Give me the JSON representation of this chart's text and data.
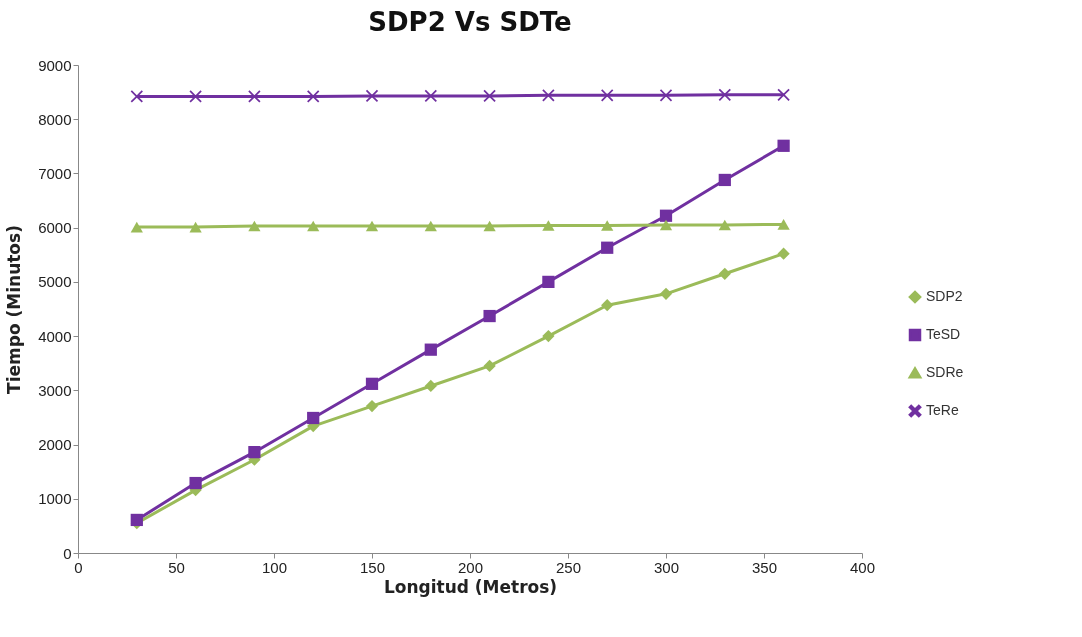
{
  "chart_data": {
    "type": "line",
    "title": "SDP2 Vs SDTe",
    "xlabel": "Longitud (Metros)",
    "ylabel": "Tiempo (Minutos)",
    "x": [
      30,
      60,
      90,
      120,
      150,
      180,
      210,
      240,
      270,
      300,
      330,
      360
    ],
    "series": [
      {
        "name": "SDP2",
        "color": "#9bbb59",
        "marker": "diamond",
        "values": [
          550,
          1160,
          1720,
          2340,
          2710,
          3080,
          3450,
          4000,
          4570,
          4780,
          5150,
          5520
        ]
      },
      {
        "name": "TeSD",
        "color": "#7030a0",
        "marker": "square",
        "values": [
          610,
          1290,
          1860,
          2490,
          3120,
          3750,
          4370,
          5000,
          5630,
          6220,
          6880,
          7510
        ]
      },
      {
        "name": "SDRe",
        "color": "#9bbb59",
        "marker": "triangle",
        "values": [
          6010,
          6010,
          6030,
          6030,
          6030,
          6030,
          6030,
          6040,
          6040,
          6050,
          6050,
          6060
        ]
      },
      {
        "name": "TeRe",
        "color": "#7030a0",
        "marker": "cross",
        "values": [
          8420,
          8420,
          8420,
          8420,
          8430,
          8430,
          8430,
          8440,
          8440,
          8440,
          8450,
          8450
        ]
      }
    ],
    "xlim": [
      0,
      400
    ],
    "xticks": [
      0,
      50,
      100,
      150,
      200,
      250,
      300,
      350,
      400
    ],
    "ylim": [
      0,
      9000
    ],
    "yticks": [
      0,
      1000,
      2000,
      3000,
      4000,
      5000,
      6000,
      7000,
      8000,
      9000
    ],
    "grid": false,
    "legend": "right",
    "line_style": "solid"
  }
}
